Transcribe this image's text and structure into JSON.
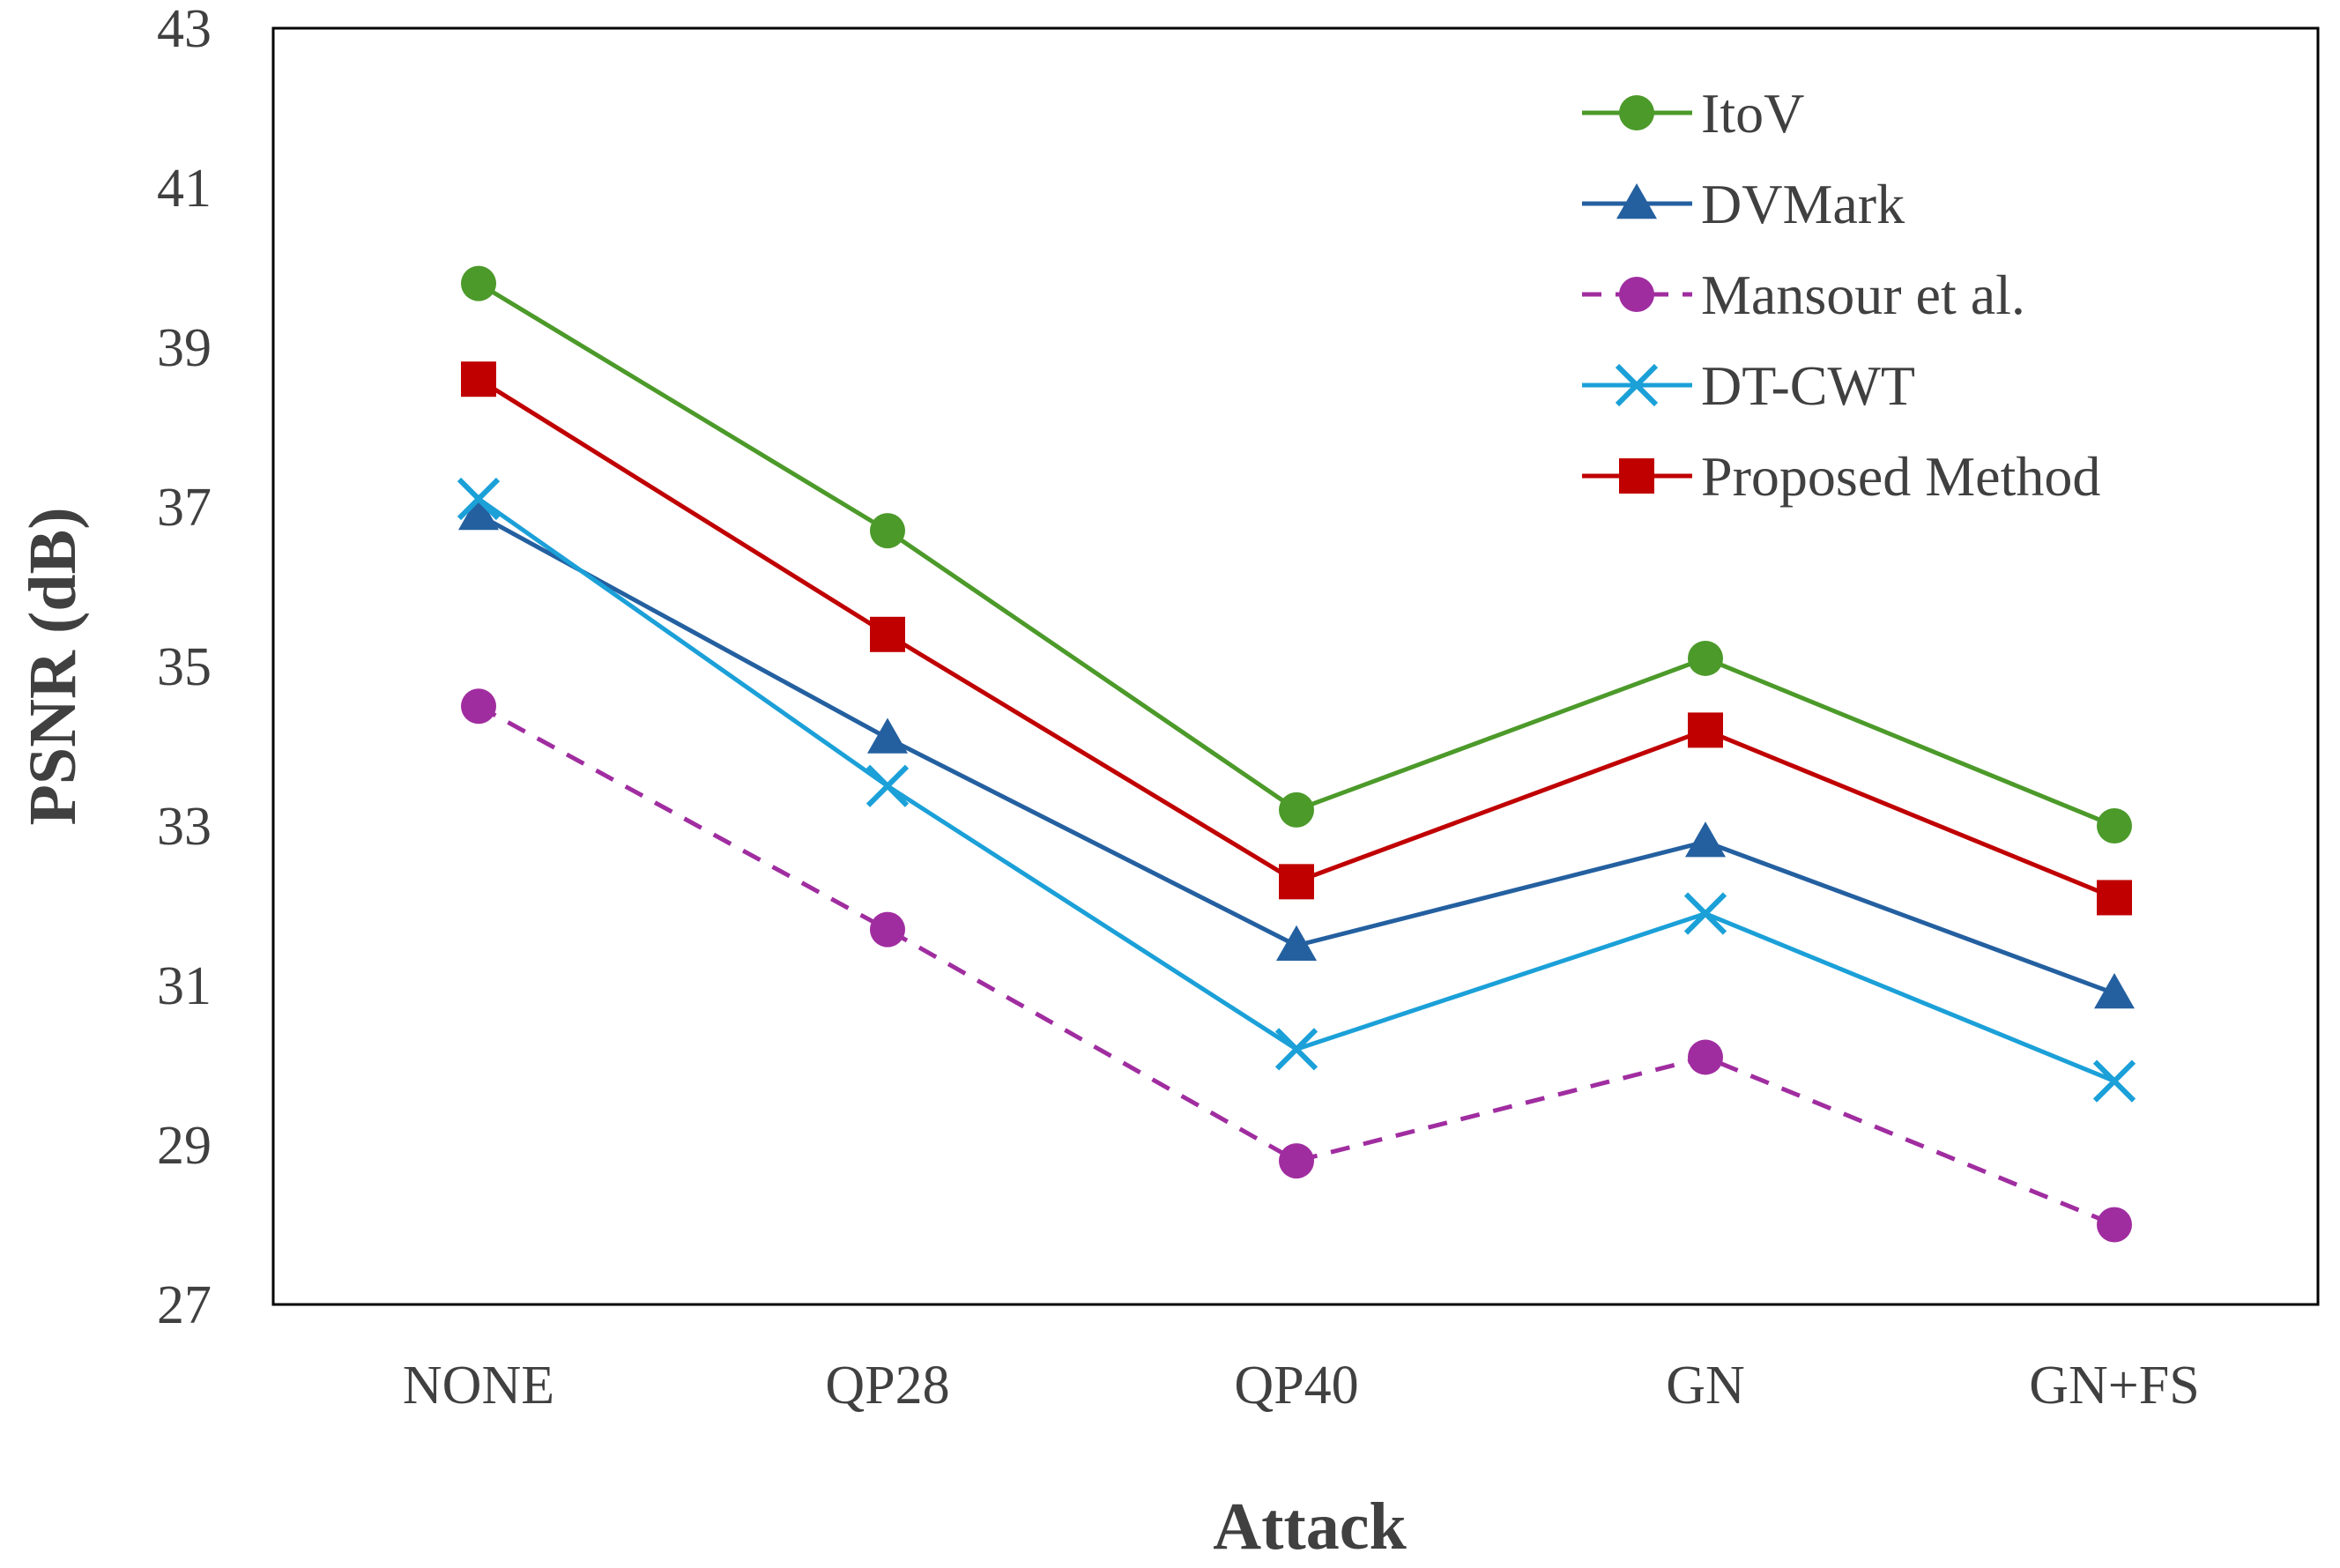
{
  "chart_data": {
    "type": "line",
    "title": "",
    "xlabel": "Attack",
    "ylabel": "PSNR (dB)",
    "categories": [
      "NONE",
      "QP28",
      "QP40",
      "GN",
      "GN+FS"
    ],
    "ylim": [
      27,
      43
    ],
    "yticks": [
      27,
      29,
      31,
      33,
      35,
      37,
      39,
      41,
      43
    ],
    "grid": false,
    "legend_position": "top-right",
    "series": [
      {
        "name": "ItoV",
        "values": [
          39.8,
          36.7,
          33.2,
          35.1,
          33.0
        ],
        "color": "#4c9a2a",
        "marker": "circle",
        "dashed": false
      },
      {
        "name": "DVMark",
        "values": [
          36.9,
          34.1,
          31.5,
          32.8,
          30.9
        ],
        "color": "#2460a0",
        "marker": "triangle",
        "dashed": false
      },
      {
        "name": "Mansour et al.",
        "values": [
          34.5,
          31.7,
          28.8,
          30.1,
          28.0
        ],
        "color": "#a02da0",
        "marker": "circle",
        "dashed": true
      },
      {
        "name": "DT-CWT",
        "values": [
          37.1,
          33.5,
          30.2,
          31.9,
          29.8
        ],
        "color": "#1ba0d8",
        "marker": "x",
        "dashed": false
      },
      {
        "name": "Proposed Method",
        "values": [
          38.6,
          35.4,
          32.3,
          34.2,
          32.1
        ],
        "color": "#c00000",
        "marker": "square",
        "dashed": false
      }
    ]
  }
}
